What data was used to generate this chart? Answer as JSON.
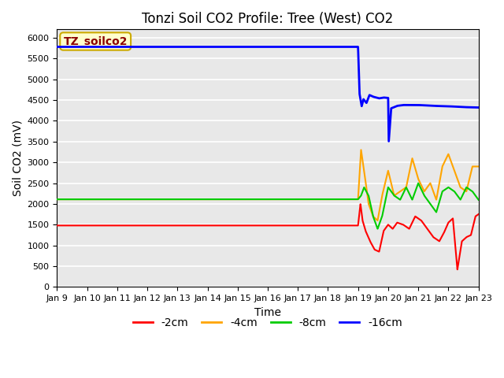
{
  "title": "Tonzi Soil CO2 Profile: Tree (West) CO2",
  "ylabel": "Soil CO2 (mV)",
  "xlabel": "Time",
  "annotation": "TZ_soilco2",
  "ylim": [
    0,
    6200
  ],
  "yticks": [
    0,
    500,
    1000,
    1500,
    2000,
    2500,
    3000,
    3500,
    4000,
    4500,
    5000,
    5500,
    6000
  ],
  "xtick_labels": [
    "Jan 9",
    "Jan 10",
    "Jan 11",
    "Jan 12",
    "Jan 13",
    "Jan 14",
    "Jan 15",
    "Jan 16",
    "Jan 17",
    "Jan 18",
    "Jan 19",
    "Jan 20",
    "Jan 21",
    "Jan 22",
    "Jan 23"
  ],
  "colors": {
    "red": "#ff0000",
    "orange": "#ffa500",
    "green": "#00cc00",
    "blue": "#0000ff"
  },
  "plot_bg": "#e8e8e8",
  "fig_bg": "#ffffff",
  "grid_color": "#ffffff",
  "legend_labels": [
    "-2cm",
    "-4cm",
    "-8cm",
    "-16cm"
  ],
  "title_fontsize": 12,
  "tick_fontsize": 8,
  "axis_label_fontsize": 10,
  "annot_fontsize": 10,
  "annot_color": "#8B0000",
  "annot_bg": "#ffffcc",
  "annot_edge": "#ccaa00",
  "trans_day": 10.0,
  "red_flat": 1480,
  "orange_flat": 2110,
  "green_flat": 2110,
  "blue_flat": 5780,
  "red_vary_t": [
    10.0,
    10.08,
    10.15,
    10.25,
    10.4,
    10.55,
    10.7,
    10.85,
    11.0,
    11.15,
    11.3,
    11.5,
    11.7,
    11.9,
    12.1,
    12.3,
    12.5,
    12.7,
    12.85,
    13.0,
    13.15,
    13.3,
    13.45,
    13.6,
    13.75,
    13.9,
    14.0
  ],
  "red_vary_v": [
    1480,
    2000,
    1600,
    1350,
    1100,
    900,
    850,
    1350,
    1500,
    1400,
    1550,
    1500,
    1400,
    1700,
    1600,
    1400,
    1200,
    1100,
    1300,
    1550,
    1650,
    420,
    1100,
    1200,
    1250,
    1700,
    1750
  ],
  "orange_vary_t": [
    10.0,
    10.1,
    10.2,
    10.35,
    10.5,
    10.65,
    10.8,
    11.0,
    11.2,
    11.4,
    11.6,
    11.8,
    12.0,
    12.2,
    12.4,
    12.6,
    12.8,
    13.0,
    13.2,
    13.4,
    13.6,
    13.8,
    14.0
  ],
  "orange_vary_v": [
    2110,
    3300,
    2800,
    2000,
    1700,
    1600,
    2200,
    2800,
    2200,
    2300,
    2400,
    3100,
    2600,
    2300,
    2500,
    2100,
    2900,
    3200,
    2800,
    2400,
    2300,
    2900,
    2900
  ],
  "green_vary_t": [
    10.0,
    10.1,
    10.2,
    10.35,
    10.5,
    10.65,
    10.8,
    11.0,
    11.2,
    11.4,
    11.6,
    11.8,
    12.0,
    12.2,
    12.4,
    12.6,
    12.8,
    13.0,
    13.2,
    13.4,
    13.6,
    13.8,
    14.0
  ],
  "green_vary_v": [
    2110,
    2200,
    2400,
    2200,
    1700,
    1400,
    1700,
    2400,
    2200,
    2100,
    2400,
    2100,
    2500,
    2200,
    2000,
    1800,
    2300,
    2400,
    2300,
    2100,
    2400,
    2300,
    2100
  ],
  "blue_t_pts": [
    0,
    9.99,
    10.0,
    10.05,
    10.12,
    10.18,
    10.28,
    10.38,
    10.5,
    10.6,
    10.7,
    10.85,
    11.0,
    11.02,
    11.1,
    11.3,
    11.5,
    12.0,
    12.5,
    13.0,
    13.5,
    14.0
  ],
  "blue_v_pts": [
    5780,
    5780,
    5780,
    4650,
    4350,
    4520,
    4430,
    4620,
    4580,
    4560,
    4540,
    4560,
    4550,
    3500,
    4300,
    4360,
    4380,
    4380,
    4360,
    4350,
    4330,
    4320
  ]
}
